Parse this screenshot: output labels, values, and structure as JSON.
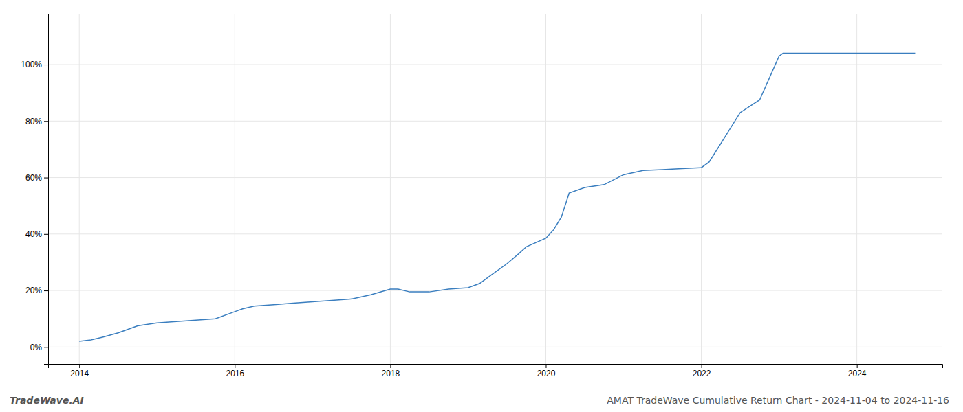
{
  "chart_data": {
    "type": "line",
    "title": "AMAT TradeWave Cumulative Return Chart - 2024-11-04 to 2024-11-16",
    "annotations": [
      "TradeWave.AI"
    ],
    "color": "#3a7ebf",
    "x": [
      2014.0,
      2014.15,
      2014.3,
      2014.5,
      2014.75,
      2015.0,
      2015.25,
      2015.5,
      2015.75,
      2016.0,
      2016.1,
      2016.25,
      2016.5,
      2016.75,
      2017.0,
      2017.25,
      2017.5,
      2017.75,
      2018.0,
      2018.1,
      2018.25,
      2018.5,
      2018.75,
      2019.0,
      2019.15,
      2019.3,
      2019.5,
      2019.65,
      2019.75,
      2020.0,
      2020.1,
      2020.2,
      2020.3,
      2020.5,
      2020.75,
      2021.0,
      2021.25,
      2021.5,
      2021.75,
      2022.0,
      2022.1,
      2022.25,
      2022.5,
      2022.75,
      2023.0,
      2023.05,
      2023.25,
      2023.5,
      2023.75,
      2024.0,
      2024.5,
      2024.75
    ],
    "values": [
      0.02,
      0.025,
      0.035,
      0.05,
      0.075,
      0.085,
      0.09,
      0.095,
      0.1,
      0.125,
      0.135,
      0.145,
      0.15,
      0.155,
      0.16,
      0.165,
      0.17,
      0.185,
      0.205,
      0.205,
      0.195,
      0.195,
      0.205,
      0.21,
      0.225,
      0.255,
      0.295,
      0.33,
      0.355,
      0.385,
      0.415,
      0.46,
      0.545,
      0.565,
      0.575,
      0.61,
      0.625,
      0.628,
      0.632,
      0.635,
      0.655,
      0.72,
      0.83,
      0.875,
      1.03,
      1.04,
      1.04,
      1.04,
      1.04,
      1.04,
      1.04,
      1.04
    ],
    "xlim": [
      2013.6,
      2025.1
    ],
    "ylim": [
      -0.06,
      1.18
    ],
    "xticks": [
      2014,
      2016,
      2018,
      2020,
      2022,
      2024
    ],
    "yticks": [
      {
        "value": 0.0,
        "label": "0%"
      },
      {
        "value": 0.2,
        "label": "20%"
      },
      {
        "value": 0.4,
        "label": "40%"
      },
      {
        "value": 0.6,
        "label": "60%"
      },
      {
        "value": 0.8,
        "label": "80%"
      },
      {
        "value": 1.0,
        "label": "100%"
      }
    ],
    "grid": true
  }
}
